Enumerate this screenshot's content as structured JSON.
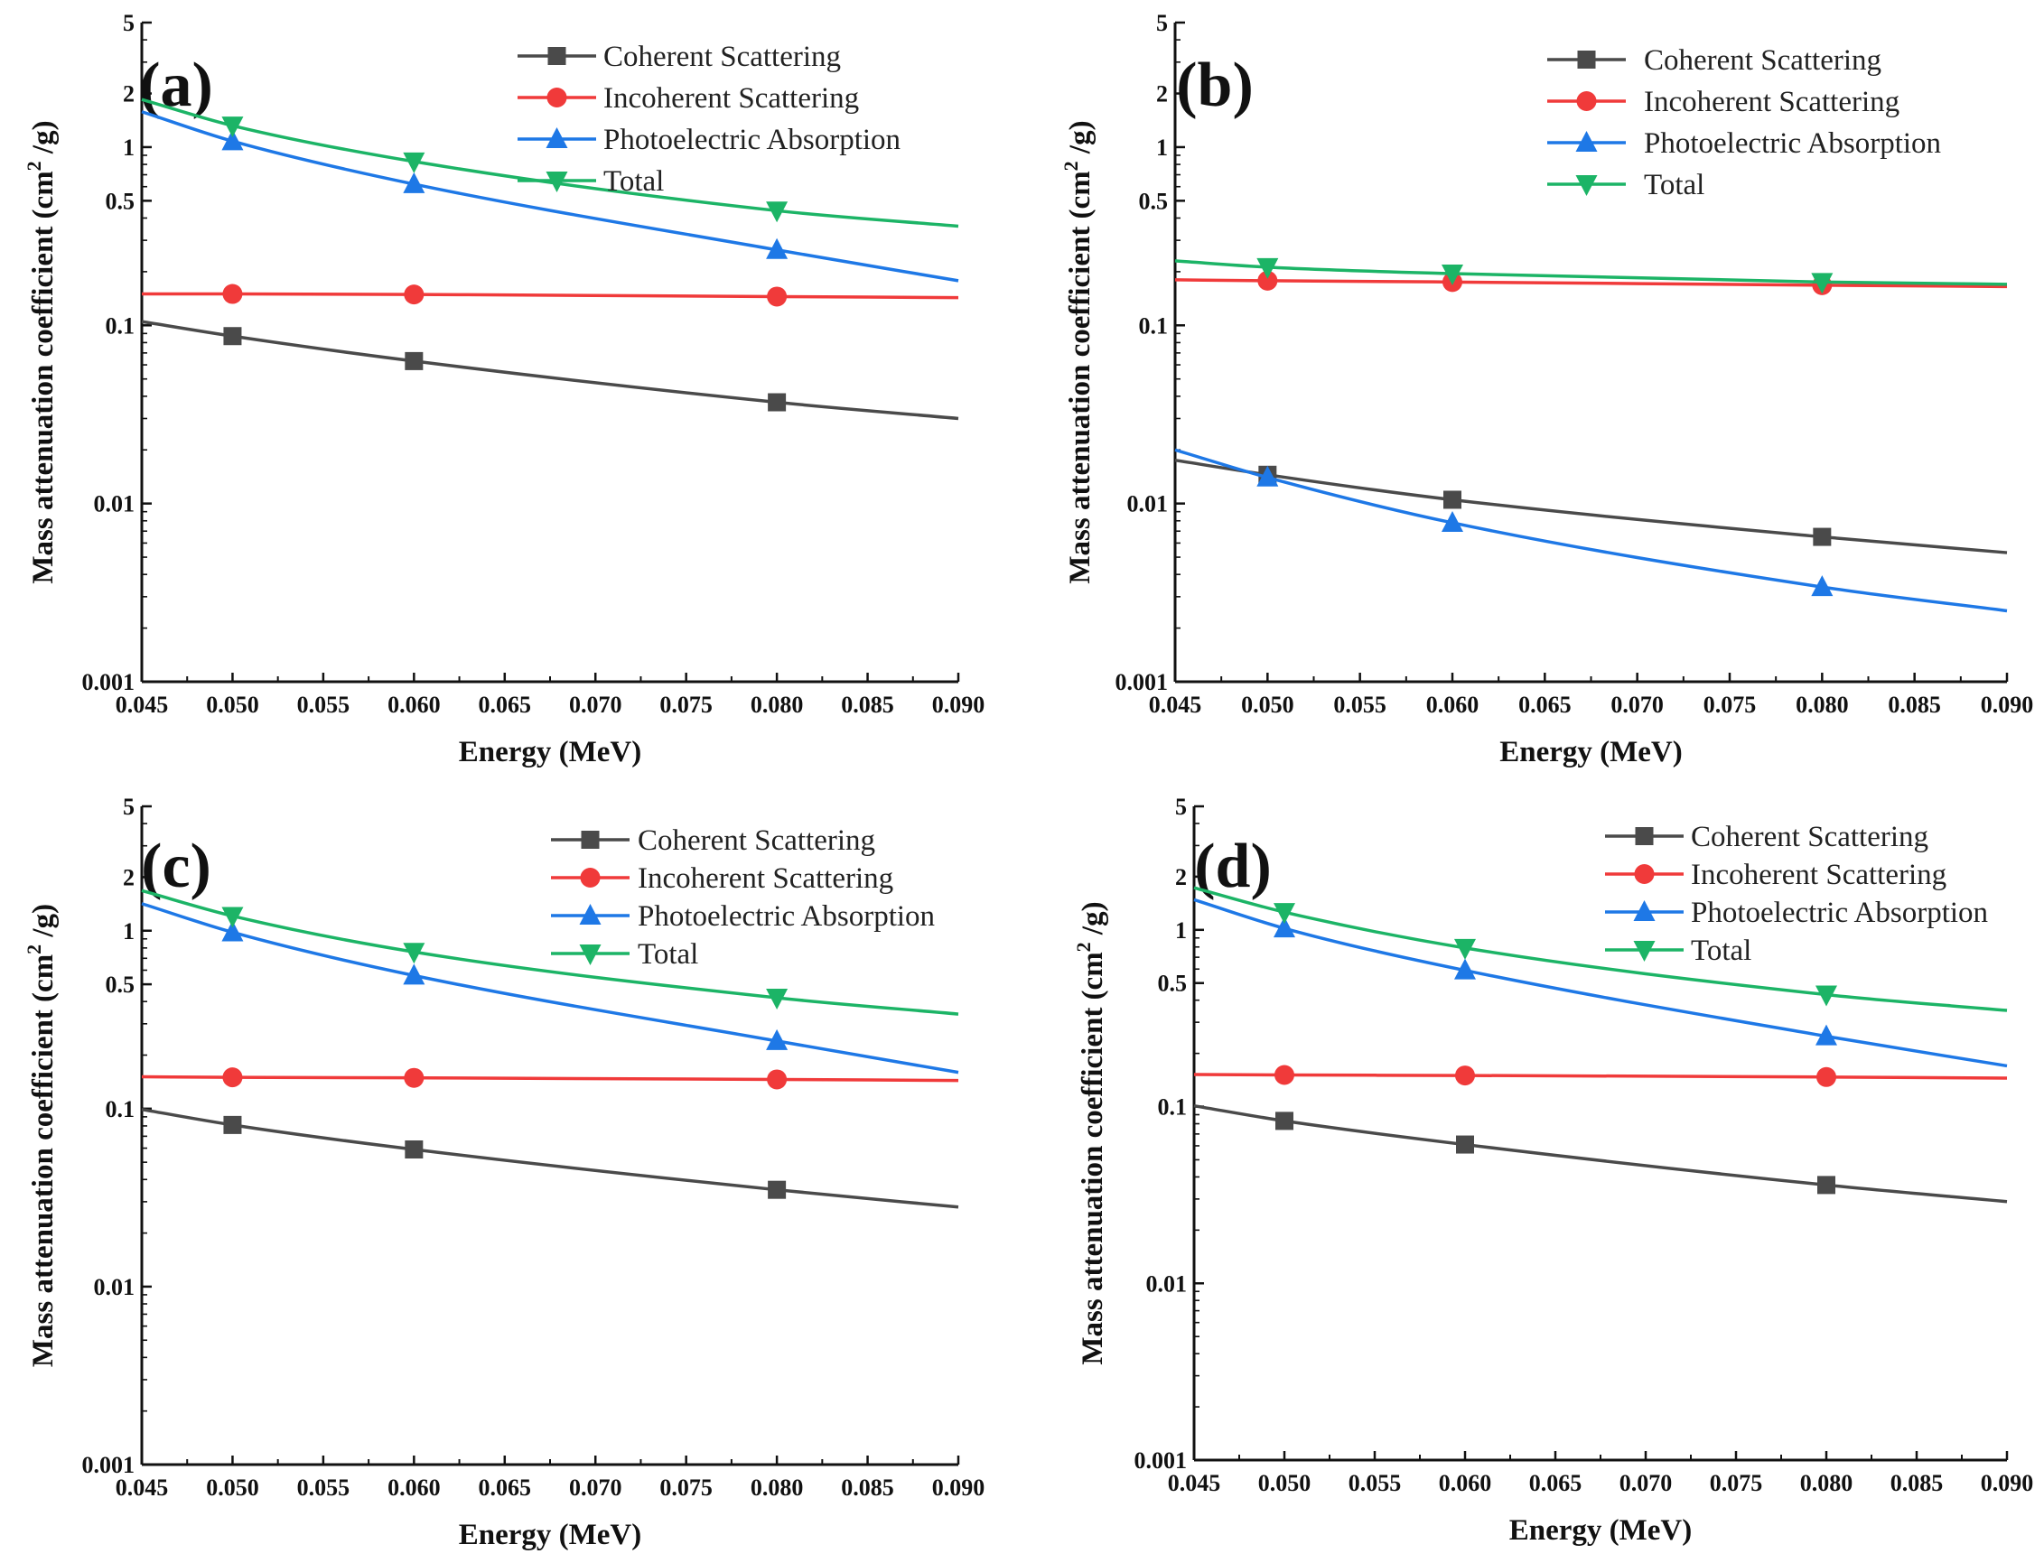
{
  "figure_colors": {
    "coherent": "#4a4a4a",
    "incoherent": "#f03a3a",
    "photoelectric": "#1e78e6",
    "total": "#1cb466"
  },
  "chart_data": [
    {
      "panel": "(a)",
      "type": "line",
      "xlabel": "Energy (MeV)",
      "ylabel": "Mass attenuation coefficient (cm²/g)",
      "ylabel_main": "Mass attenuation coefficient (cm",
      "ylabel_sup": "2",
      "ylabel_tail": " /g)",
      "xlim": [
        0.045,
        0.09
      ],
      "ylim": [
        0.001,
        5
      ],
      "yscale": "log",
      "xticks": [
        "0.045",
        "0.050",
        "0.055",
        "0.060",
        "0.065",
        "0.070",
        "0.075",
        "0.080",
        "0.085",
        "0.090"
      ],
      "yticks": [
        "0.001",
        "0.01",
        "0.1",
        "0.5",
        "1",
        "2",
        "5"
      ],
      "legend": "top-right",
      "series": [
        {
          "name": "Coherent Scattering",
          "key": "coherent",
          "marker": "square",
          "x": [
            0.045,
            0.05,
            0.06,
            0.08,
            0.09
          ],
          "values": [
            0.105,
            0.087,
            0.063,
            0.037,
            0.03
          ],
          "marked": [
            false,
            true,
            true,
            true,
            false
          ]
        },
        {
          "name": "Incoherent Scattering",
          "key": "incoherent",
          "marker": "circle",
          "x": [
            0.045,
            0.05,
            0.06,
            0.08,
            0.09
          ],
          "values": [
            0.15,
            0.15,
            0.149,
            0.145,
            0.143
          ],
          "marked": [
            false,
            true,
            true,
            true,
            false
          ]
        },
        {
          "name": "Photoelectric Absorption",
          "key": "photoelectric",
          "marker": "triangle-up",
          "x": [
            0.045,
            0.05,
            0.06,
            0.08,
            0.09
          ],
          "values": [
            1.58,
            1.08,
            0.62,
            0.265,
            0.178
          ],
          "marked": [
            false,
            true,
            true,
            true,
            false
          ]
        },
        {
          "name": "Total",
          "key": "total",
          "marker": "triangle-down",
          "x": [
            0.045,
            0.05,
            0.06,
            0.08,
            0.09
          ],
          "values": [
            1.85,
            1.32,
            0.83,
            0.44,
            0.36
          ],
          "marked": [
            false,
            true,
            true,
            true,
            false
          ]
        }
      ]
    },
    {
      "panel": "(b)",
      "type": "line",
      "xlabel": "Energy (MeV)",
      "ylabel": "Mass attenuation coefficient (cm²/g)",
      "ylabel_main": "Mass attenuation coefficient (cm",
      "ylabel_sup": "2",
      "ylabel_tail": " /g)",
      "xlim": [
        0.045,
        0.09
      ],
      "ylim": [
        0.001,
        5
      ],
      "yscale": "log",
      "xticks": [
        "0.045",
        "0.050",
        "0.055",
        "0.060",
        "0.065",
        "0.070",
        "0.075",
        "0.080",
        "0.085",
        "0.090"
      ],
      "yticks": [
        "0.001",
        "0.01",
        "0.1",
        "0.5",
        "1",
        "2",
        "5"
      ],
      "legend": "top-right",
      "series": [
        {
          "name": "Coherent Scattering",
          "key": "coherent",
          "marker": "square",
          "x": [
            0.045,
            0.05,
            0.06,
            0.08,
            0.09
          ],
          "values": [
            0.0175,
            0.0145,
            0.0105,
            0.0065,
            0.0053
          ],
          "marked": [
            false,
            true,
            true,
            true,
            false
          ]
        },
        {
          "name": "Incoherent Scattering",
          "key": "incoherent",
          "marker": "circle",
          "x": [
            0.045,
            0.05,
            0.06,
            0.08,
            0.09
          ],
          "values": [
            0.18,
            0.178,
            0.175,
            0.168,
            0.165
          ],
          "marked": [
            false,
            true,
            true,
            true,
            false
          ]
        },
        {
          "name": "Photoelectric Absorption",
          "key": "photoelectric",
          "marker": "triangle-up",
          "x": [
            0.045,
            0.05,
            0.06,
            0.08,
            0.09
          ],
          "values": [
            0.02,
            0.014,
            0.0078,
            0.0034,
            0.0025
          ],
          "marked": [
            false,
            true,
            true,
            true,
            false
          ]
        },
        {
          "name": "Total",
          "key": "total",
          "marker": "triangle-down",
          "x": [
            0.045,
            0.05,
            0.06,
            0.08,
            0.09
          ],
          "values": [
            0.23,
            0.212,
            0.195,
            0.175,
            0.17
          ],
          "marked": [
            false,
            true,
            true,
            true,
            false
          ]
        }
      ]
    },
    {
      "panel": "(c)",
      "type": "line",
      "xlabel": "Energy (MeV)",
      "ylabel": "Mass attenuation coefficient (cm²/g)",
      "ylabel_main": "Mass attenuation coefficient (cm",
      "ylabel_sup": "2",
      "ylabel_tail": " /g)",
      "xlim": [
        0.045,
        0.09
      ],
      "ylim": [
        0.001,
        5
      ],
      "yscale": "log",
      "xticks": [
        "0.045",
        "0.050",
        "0.055",
        "0.060",
        "0.065",
        "0.070",
        "0.075",
        "0.080",
        "0.085",
        "0.090"
      ],
      "yticks": [
        "0.001",
        "0.01",
        "0.1",
        "0.5",
        "1",
        "2",
        "5"
      ],
      "legend": "top-right",
      "series": [
        {
          "name": "Coherent Scattering",
          "key": "coherent",
          "marker": "square",
          "x": [
            0.045,
            0.05,
            0.06,
            0.08,
            0.09
          ],
          "values": [
            0.099,
            0.081,
            0.059,
            0.035,
            0.028
          ],
          "marked": [
            false,
            true,
            true,
            true,
            false
          ]
        },
        {
          "name": "Incoherent Scattering",
          "key": "incoherent",
          "marker": "circle",
          "x": [
            0.045,
            0.05,
            0.06,
            0.08,
            0.09
          ],
          "values": [
            0.151,
            0.15,
            0.149,
            0.146,
            0.144
          ],
          "marked": [
            false,
            true,
            true,
            true,
            false
          ]
        },
        {
          "name": "Photoelectric Absorption",
          "key": "photoelectric",
          "marker": "triangle-up",
          "x": [
            0.045,
            0.05,
            0.06,
            0.08,
            0.09
          ],
          "values": [
            1.42,
            0.98,
            0.56,
            0.24,
            0.16
          ],
          "marked": [
            false,
            true,
            true,
            true,
            false
          ]
        },
        {
          "name": "Total",
          "key": "total",
          "marker": "triangle-down",
          "x": [
            0.045,
            0.05,
            0.06,
            0.08,
            0.09
          ],
          "values": [
            1.68,
            1.21,
            0.76,
            0.42,
            0.34
          ],
          "marked": [
            false,
            true,
            true,
            true,
            false
          ]
        }
      ]
    },
    {
      "panel": "(d)",
      "type": "line",
      "xlabel": "Energy (MeV)",
      "ylabel": "Mass attenuation coefficient (cm²/g)",
      "ylabel_main": "Mass attenuation coefficient (cm",
      "ylabel_sup": "2",
      "ylabel_tail": " /g)",
      "xlim": [
        0.045,
        0.09
      ],
      "ylim": [
        0.001,
        5
      ],
      "yscale": "log",
      "xticks": [
        "0.045",
        "0.050",
        "0.055",
        "0.060",
        "0.065",
        "0.070",
        "0.075",
        "0.080",
        "0.085",
        "0.090"
      ],
      "yticks": [
        "0.001",
        "0.01",
        "0.1",
        "0.5",
        "1",
        "2",
        "5"
      ],
      "legend": "top-right",
      "series": [
        {
          "name": "Coherent Scattering",
          "key": "coherent",
          "marker": "square",
          "x": [
            0.045,
            0.05,
            0.06,
            0.08,
            0.09
          ],
          "values": [
            0.101,
            0.083,
            0.061,
            0.036,
            0.029
          ],
          "marked": [
            false,
            true,
            true,
            true,
            false
          ]
        },
        {
          "name": "Incoherent Scattering",
          "key": "incoherent",
          "marker": "circle",
          "x": [
            0.045,
            0.05,
            0.06,
            0.08,
            0.09
          ],
          "values": [
            0.152,
            0.151,
            0.15,
            0.147,
            0.145
          ],
          "marked": [
            false,
            true,
            true,
            true,
            false
          ]
        },
        {
          "name": "Photoelectric Absorption",
          "key": "photoelectric",
          "marker": "triangle-up",
          "x": [
            0.045,
            0.05,
            0.06,
            0.08,
            0.09
          ],
          "values": [
            1.48,
            1.02,
            0.59,
            0.25,
            0.17
          ],
          "marked": [
            false,
            true,
            true,
            true,
            false
          ]
        },
        {
          "name": "Total",
          "key": "total",
          "marker": "triangle-down",
          "x": [
            0.045,
            0.05,
            0.06,
            0.08,
            0.09
          ],
          "values": [
            1.73,
            1.26,
            0.79,
            0.43,
            0.35
          ],
          "marked": [
            false,
            true,
            true,
            true,
            false
          ]
        }
      ]
    }
  ]
}
